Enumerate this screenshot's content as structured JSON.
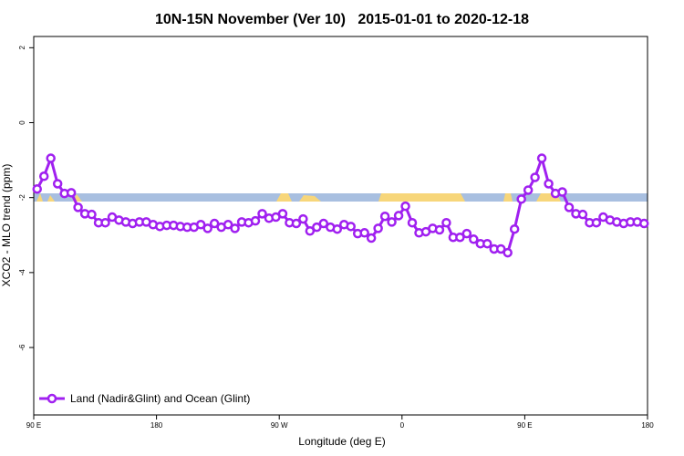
{
  "chart_data": {
    "type": "line",
    "title": "10N-15N November (Ver 10)   2015-01-01 to 2020-12-18",
    "xlabel": "Longitude (deg E)",
    "ylabel": "XCO2 - MLO trend (ppm)",
    "xlim": [
      90,
      540
    ],
    "xticks": [
      {
        "value": 90,
        "label": "90 E"
      },
      180,
      {
        "value": 270,
        "label": "90 W"
      },
      {
        "value": 360,
        "label": "0"
      },
      {
        "value": 450,
        "label": "90 E"
      },
      180
    ],
    "ylim": [
      -7.8,
      2.3
    ],
    "yticks": [
      2,
      0,
      -2,
      -4,
      -6
    ],
    "legend": "bottom-left",
    "x": [
      92.5,
      97.5,
      102.5,
      107.5,
      112.5,
      117.5,
      122.5,
      127.5,
      132.5,
      137.5,
      142.5,
      147.5,
      152.5,
      157.5,
      162.5,
      167.5,
      172.5,
      177.5,
      182.5,
      187.5,
      192.5,
      197.5,
      202.5,
      207.5,
      212.5,
      217.5,
      222.5,
      227.5,
      232.5,
      237.5,
      242.5,
      247.5,
      252.5,
      257.5,
      262.5,
      267.5,
      272.5,
      277.5,
      282.5,
      287.5,
      292.5,
      297.5,
      302.5,
      307.5,
      312.5,
      317.5,
      322.5,
      327.5,
      332.5,
      337.5,
      342.5,
      347.5,
      352.5,
      357.5,
      362.5,
      367.5,
      372.5,
      377.5,
      382.5,
      387.5,
      392.5,
      397.5,
      402.5,
      407.5,
      412.5,
      417.5,
      422.5,
      427.5,
      432.5,
      437.5,
      442.5,
      447.5,
      452.5,
      457.5,
      462.5,
      467.5,
      472.5,
      477.5,
      482.5,
      487.5,
      492.5,
      497.5,
      502.5,
      507.5,
      512.5,
      517.5,
      522.5,
      527.5,
      532.5,
      537.5
    ],
    "series": [
      {
        "name": "Land (Nadir&Glint) and Ocean (Glint)",
        "color": "#a020f0",
        "values": [
          -1.77,
          -1.43,
          -0.95,
          -1.63,
          -1.89,
          -1.87,
          -2.26,
          -2.43,
          -2.45,
          -2.67,
          -2.67,
          -2.52,
          -2.6,
          -2.65,
          -2.69,
          -2.65,
          -2.65,
          -2.72,
          -2.77,
          -2.74,
          -2.74,
          -2.77,
          -2.79,
          -2.79,
          -2.72,
          -2.82,
          -2.69,
          -2.79,
          -2.72,
          -2.82,
          -2.65,
          -2.67,
          -2.62,
          -2.43,
          -2.55,
          -2.52,
          -2.43,
          -2.67,
          -2.69,
          -2.57,
          -2.89,
          -2.79,
          -2.69,
          -2.79,
          -2.84,
          -2.72,
          -2.77,
          -2.96,
          -2.94,
          -3.08,
          -2.82,
          -2.5,
          -2.65,
          -2.48,
          -2.23,
          -2.67,
          -2.94,
          -2.91,
          -2.82,
          -2.86,
          -2.67,
          -3.06,
          -3.06,
          -2.96,
          -3.11,
          -3.23,
          -3.23,
          -3.37,
          -3.37,
          -3.47,
          -2.84,
          -2.04,
          -1.8,
          -1.46,
          -0.95,
          -1.63,
          -1.89,
          -1.85,
          -2.26,
          -2.43,
          -2.45,
          -2.67,
          -2.67,
          -2.52,
          -2.6,
          -2.65,
          -2.69,
          -2.65,
          -2.65,
          -2.69
        ]
      }
    ]
  }
}
